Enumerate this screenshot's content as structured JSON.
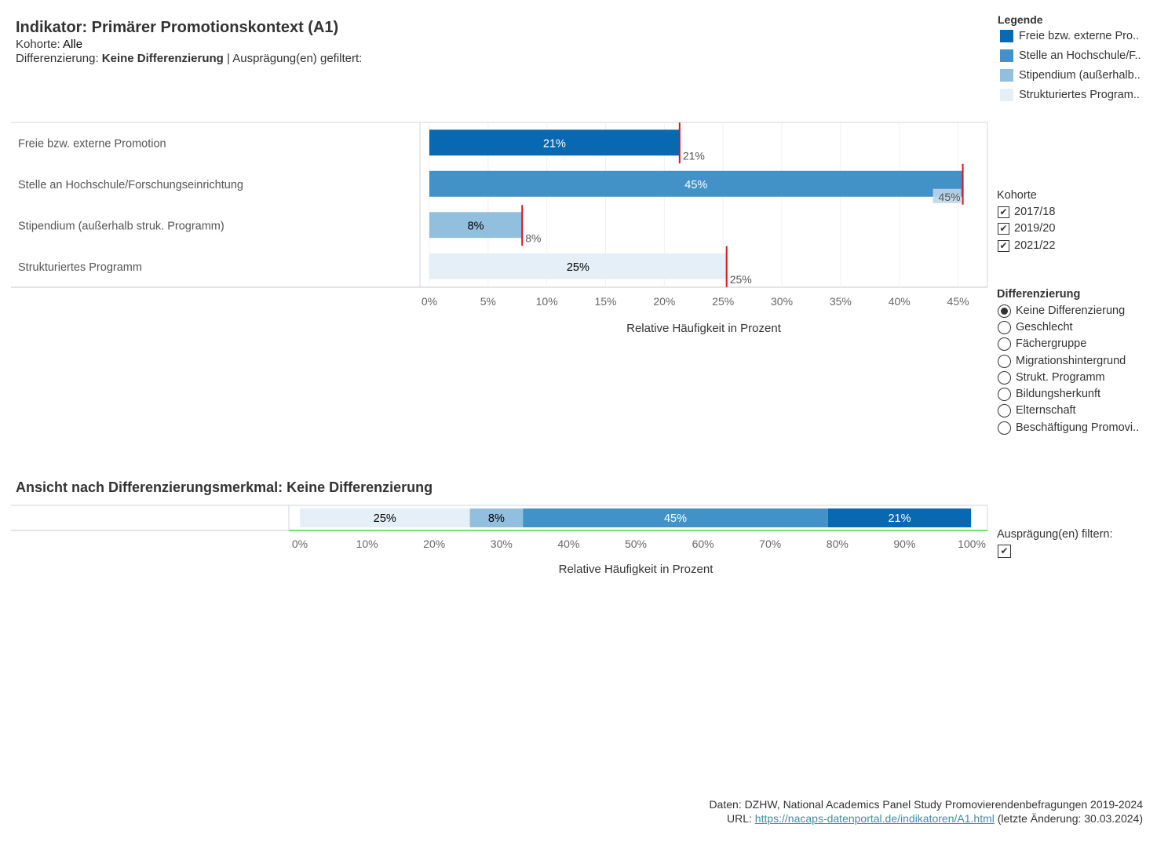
{
  "header": {
    "title": "Indikator: Primärer Promotionskontext (A1)",
    "kohorte_label": "Kohorte: ",
    "kohorte_value": "Alle",
    "diff_label": "Differenzierung: ",
    "diff_value": "Keine Differenzierung",
    "diff_suffix": " | Ausprägung(en) gefiltert:"
  },
  "legend": {
    "title": "Legende",
    "items": [
      {
        "label": "Freie bzw. externe Pro..",
        "color": "#0868b1"
      },
      {
        "label": "Stelle an Hochschule/F..",
        "color": "#4292c8"
      },
      {
        "label": "Stipendium (außerhalb..",
        "color": "#93bfdf"
      },
      {
        "label": "Strukturiertes Program..",
        "color": "#e5eff7"
      }
    ]
  },
  "kohorte_filter": {
    "title": "Kohorte",
    "options": [
      {
        "label": "2017/18",
        "checked": true
      },
      {
        "label": "2019/20",
        "checked": true
      },
      {
        "label": "2021/22",
        "checked": true
      }
    ]
  },
  "differenzierung": {
    "title": "Differenzierung",
    "options": [
      {
        "label": "Keine Differenzierung",
        "selected": true
      },
      {
        "label": "Geschlecht",
        "selected": false
      },
      {
        "label": "Fächergruppe",
        "selected": false
      },
      {
        "label": "Migrationshintergrund",
        "selected": false
      },
      {
        "label": "Strukt. Programm",
        "selected": false
      },
      {
        "label": "Bildungsherkunft",
        "selected": false
      },
      {
        "label": "Elternschaft",
        "selected": false
      },
      {
        "label": "Beschäftigung Promovi..",
        "selected": false
      }
    ]
  },
  "auspraegung_filter": {
    "title": "Ausprägung(en) filtern:",
    "checked": true
  },
  "section2_title": "Ansicht nach Differenzierungsmerkmal: Keine Differenzierung",
  "chart_data": [
    {
      "type": "bar",
      "orientation": "horizontal",
      "categories": [
        "Freie bzw. externe Promotion",
        "Stelle an Hochschule/Forschungseinrichtung",
        "Stipendium (außerhalb struk. Programm)",
        "Strukturiertes Programm"
      ],
      "values": [
        21.3,
        45.4,
        7.9,
        25.3
      ],
      "bar_labels": [
        "21%",
        "45%",
        "8%",
        "25%"
      ],
      "reference_values": [
        21.3,
        45.4,
        7.9,
        25.3
      ],
      "reference_labels": [
        "21%",
        "45%",
        "8%",
        "25%"
      ],
      "colors": [
        "#0868b1",
        "#4292c8",
        "#93bfdf",
        "#e5eff7"
      ],
      "label_colors": [
        "#ffffff",
        "#ffffff",
        "#000000",
        "#000000"
      ],
      "reference_color": "#e0101a",
      "xlabel": "Relative Häufigkeit in Prozent",
      "xlim": [
        -0.8,
        47.5
      ],
      "xticks": [
        0,
        5,
        10,
        15,
        20,
        25,
        30,
        35,
        40,
        45
      ],
      "xtick_labels": [
        "0%",
        "5%",
        "10%",
        "15%",
        "20%",
        "25%",
        "30%",
        "35%",
        "40%",
        "45%"
      ],
      "grid": true
    },
    {
      "type": "bar",
      "orientation": "horizontal",
      "stacked": true,
      "segments": [
        {
          "name": "Strukturiertes Programm",
          "value": 25.3,
          "label": "25%",
          "color": "#e5eff7",
          "label_color": "#000000"
        },
        {
          "name": "Stipendium (außerhalb struk. Programm)",
          "value": 7.9,
          "label": "8%",
          "color": "#93bfdf",
          "label_color": "#000000"
        },
        {
          "name": "Stelle an Hochschule/Forschungseinrichtung",
          "value": 45.4,
          "label": "45%",
          "color": "#4292c8",
          "label_color": "#ffffff"
        },
        {
          "name": "Freie bzw. externe Promotion",
          "value": 21.3,
          "label": "21%",
          "color": "#0868b1",
          "label_color": "#ffffff"
        }
      ],
      "xlabel": "Relative Häufigkeit in Prozent",
      "xlim": [
        0,
        100
      ],
      "xticks": [
        0,
        10,
        20,
        30,
        40,
        50,
        60,
        70,
        80,
        90,
        100
      ],
      "xtick_labels": [
        "0%",
        "10%",
        "20%",
        "30%",
        "40%",
        "50%",
        "60%",
        "70%",
        "80%",
        "90%",
        "100%"
      ]
    }
  ],
  "footer": {
    "source": "Daten: DZHW, National Academics Panel Study Promovierendenbefragungen 2019-2024",
    "url_prefix": "URL: ",
    "url": "https://nacaps-datenportal.de/indikatoren/A1.html",
    "url_suffix": " (letzte Änderung: 30.03.2024)"
  }
}
